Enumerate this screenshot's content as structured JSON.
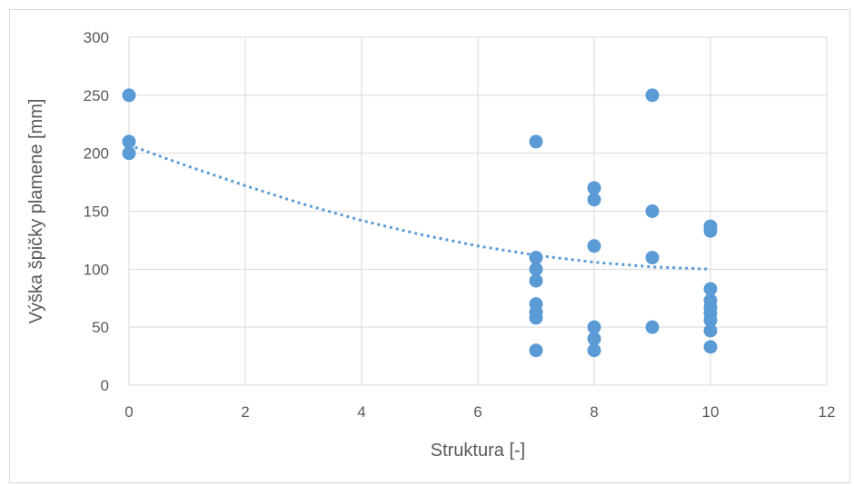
{
  "chart_data": {
    "type": "scatter",
    "title": "",
    "xlabel": "Struktura [-]",
    "ylabel": "Výška špičky plamene [mm]",
    "xlim": [
      0,
      12
    ],
    "ylim": [
      0,
      300
    ],
    "xticks": [
      0,
      2,
      4,
      6,
      8,
      10,
      12
    ],
    "yticks": [
      0,
      50,
      100,
      150,
      200,
      250,
      300
    ],
    "grid": true,
    "legend": "none",
    "marker_color": "#5b9bd5",
    "points": [
      {
        "x": 0,
        "y": 250
      },
      {
        "x": 0,
        "y": 210
      },
      {
        "x": 0,
        "y": 200
      },
      {
        "x": 7,
        "y": 210
      },
      {
        "x": 7,
        "y": 110
      },
      {
        "x": 7,
        "y": 100
      },
      {
        "x": 7,
        "y": 90
      },
      {
        "x": 7,
        "y": 70
      },
      {
        "x": 7,
        "y": 63
      },
      {
        "x": 7,
        "y": 58
      },
      {
        "x": 7,
        "y": 30
      },
      {
        "x": 8,
        "y": 170
      },
      {
        "x": 8,
        "y": 160
      },
      {
        "x": 8,
        "y": 120
      },
      {
        "x": 8,
        "y": 50
      },
      {
        "x": 8,
        "y": 40
      },
      {
        "x": 8,
        "y": 30
      },
      {
        "x": 9,
        "y": 250
      },
      {
        "x": 9,
        "y": 150
      },
      {
        "x": 9,
        "y": 110
      },
      {
        "x": 9,
        "y": 50
      },
      {
        "x": 10,
        "y": 137
      },
      {
        "x": 10,
        "y": 133
      },
      {
        "x": 10,
        "y": 83
      },
      {
        "x": 10,
        "y": 73
      },
      {
        "x": 10,
        "y": 67
      },
      {
        "x": 10,
        "y": 62
      },
      {
        "x": 10,
        "y": 56
      },
      {
        "x": 10,
        "y": 47
      },
      {
        "x": 10,
        "y": 33
      }
    ],
    "trendline": {
      "type": "polynomial",
      "style": "dotted",
      "color": "#5b9bd5",
      "x_range": [
        0,
        10
      ],
      "samples": [
        {
          "x": 0,
          "y": 207
        },
        {
          "x": 1,
          "y": 189
        },
        {
          "x": 2,
          "y": 172
        },
        {
          "x": 3,
          "y": 156
        },
        {
          "x": 4,
          "y": 142
        },
        {
          "x": 5,
          "y": 130
        },
        {
          "x": 6,
          "y": 120
        },
        {
          "x": 7,
          "y": 112
        },
        {
          "x": 8,
          "y": 106
        },
        {
          "x": 9,
          "y": 102
        },
        {
          "x": 10,
          "y": 100
        }
      ]
    }
  }
}
